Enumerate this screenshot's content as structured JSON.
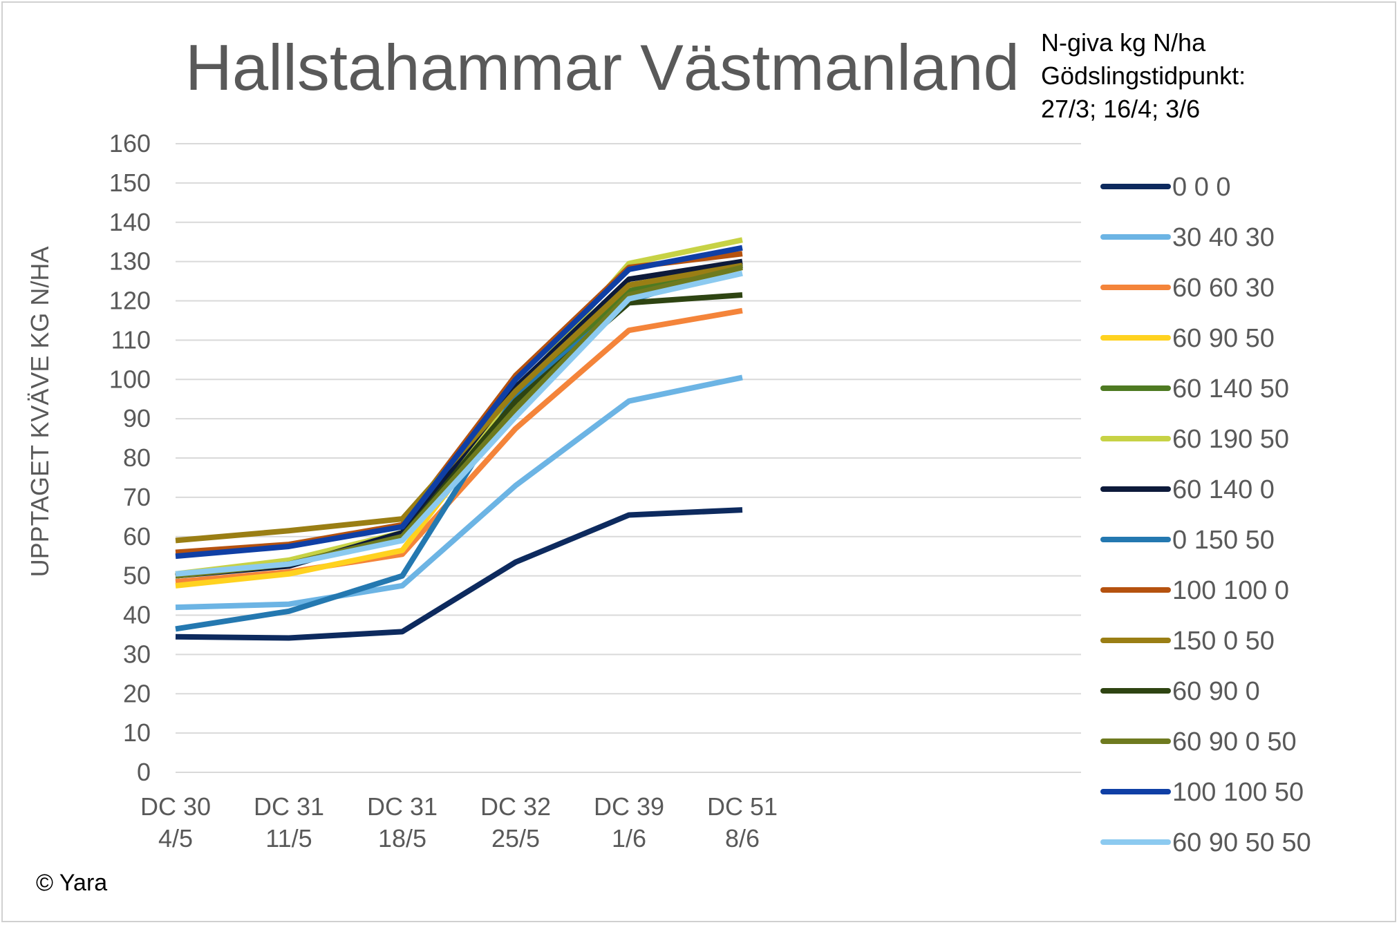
{
  "chart_data": {
    "type": "line",
    "title": "Hallstahammar Västmanland",
    "ylabel": "UPPTAGET KVÄVE KG N/HA",
    "xlabel": "",
    "ylim": [
      0,
      160
    ],
    "ytick_step": 10,
    "grid": true,
    "legend_position": "right",
    "legend_title": [
      "N-giva kg N/ha",
      "Gödslingstidpunkt:",
      "27/3; 16/4; 3/6"
    ],
    "categories": [
      [
        "DC 30",
        "4/5"
      ],
      [
        "DC 31",
        "11/5"
      ],
      [
        "DC 31",
        "18/5"
      ],
      [
        "DC 32",
        "25/5"
      ],
      [
        "DC 39",
        "1/6"
      ],
      [
        "DC 51",
        "8/6"
      ]
    ],
    "series": [
      {
        "name": "0 0 0",
        "color": "#0d2a5e",
        "values": [
          34.5,
          34.2,
          35.8,
          53.5,
          65.5,
          66.8
        ]
      },
      {
        "name": "30 40 30",
        "color": "#6cb4e4",
        "values": [
          42.0,
          42.8,
          47.5,
          73.0,
          94.5,
          100.5
        ]
      },
      {
        "name": "60 60 30",
        "color": "#f4843a",
        "values": [
          48.5,
          51.0,
          55.5,
          87.5,
          112.5,
          117.5
        ]
      },
      {
        "name": "60 90 50",
        "color": "#ffd21f",
        "values": [
          47.5,
          50.5,
          56.5,
          94.0,
          122.0,
          129.0
        ]
      },
      {
        "name": "60 140 50",
        "color": "#4e7a22",
        "values": [
          50.0,
          53.5,
          60.5,
          95.5,
          122.5,
          129.5
        ]
      },
      {
        "name": "60 190 50",
        "color": "#c7d245",
        "values": [
          50.5,
          54.0,
          61.0,
          96.5,
          129.5,
          135.5
        ]
      },
      {
        "name": "60 140 0",
        "color": "#0d1a3a",
        "values": [
          50.0,
          52.5,
          61.0,
          98.0,
          125.5,
          130.0
        ]
      },
      {
        "name": "0 150 50",
        "color": "#2478b0",
        "values": [
          36.5,
          41.0,
          50.0,
          96.0,
          120.0,
          129.0
        ]
      },
      {
        "name": "100 100 0",
        "color": "#b5520f",
        "values": [
          56.0,
          58.0,
          63.0,
          101.0,
          128.5,
          132.0
        ]
      },
      {
        "name": "150 0 50",
        "color": "#9a7e14",
        "values": [
          59.0,
          61.5,
          64.5,
          97.0,
          124.0,
          129.0
        ]
      },
      {
        "name": "60 90 0",
        "color": "#2e4412",
        "values": [
          50.0,
          53.0,
          60.0,
          94.5,
          119.5,
          121.5
        ]
      },
      {
        "name": "60 90 0 50",
        "color": "#6e7a1f",
        "values": [
          50.0,
          53.0,
          60.0,
          92.5,
          121.5,
          128.5
        ]
      },
      {
        "name": "100 100 50",
        "color": "#0f3fa5",
        "values": [
          55.0,
          57.5,
          62.5,
          100.0,
          128.0,
          133.5
        ]
      },
      {
        "name": "60 90 50 50",
        "color": "#8ccaf0",
        "values": [
          50.5,
          53.0,
          59.0,
          90.5,
          120.5,
          127.0
        ]
      }
    ]
  },
  "copyright": "© Yara"
}
